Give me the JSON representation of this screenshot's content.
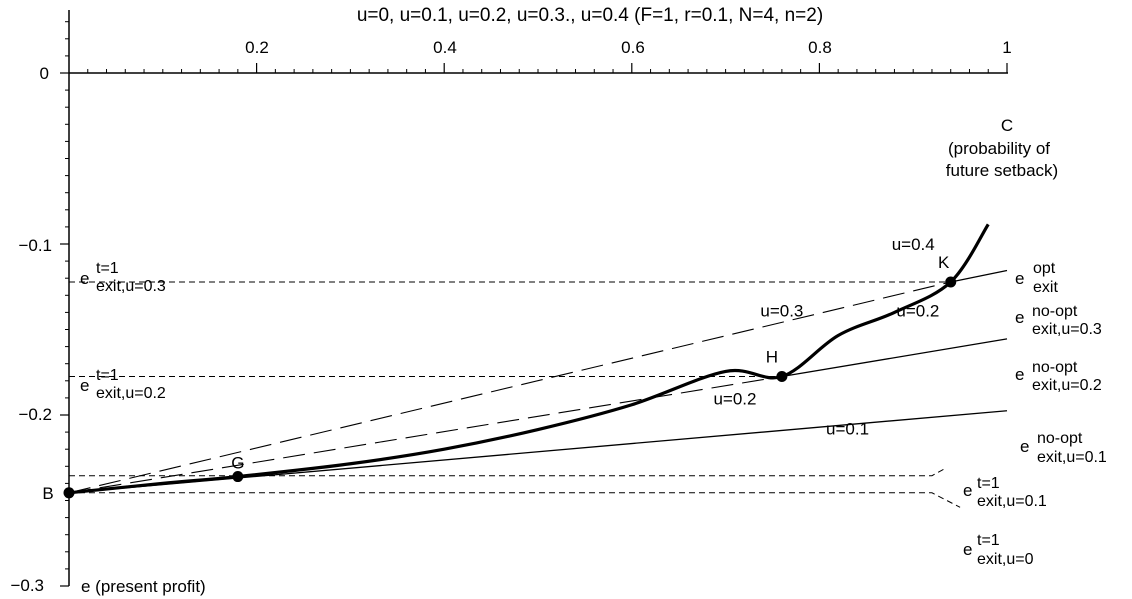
{
  "chart_data": {
    "type": "line",
    "title": "u=0, u=0.1, u=0.2, u=0.3., u=0.4  (F=1, r=0.1, N=4, n=2)",
    "xlim": [
      0,
      1
    ],
    "ylim": [
      -0.3,
      0.035
    ],
    "x_axis_position": "top, at e = 0",
    "x_ticks": [
      "0.2",
      "0.4",
      "0.6",
      "0.8",
      "1"
    ],
    "y_ticks": [
      "0",
      "−0.1",
      "−0.2",
      "−0.3"
    ],
    "x_label": [
      "C",
      "(probability of",
      "future setback)"
    ],
    "y_label": "e  (present profit)",
    "grid": false,
    "legend": "none",
    "series": [
      {
        "style": "thick-solid",
        "label_main": "e",
        "label_sup": "opt",
        "label_sub": "exit",
        "x": [
          0,
          0.1,
          0.18,
          0.3,
          0.4,
          0.5,
          0.6,
          0.7,
          0.76,
          0.82,
          0.88,
          0.94,
          0.98
        ],
        "y": [
          -0.2455,
          -0.24,
          -0.236,
          -0.2285,
          -0.22,
          -0.2085,
          -0.194,
          -0.1745,
          -0.1775,
          -0.1535,
          -0.14,
          -0.1222,
          -0.0885
        ]
      },
      {
        "style": "thin-solid",
        "label_main": "e",
        "label_sup": "no-opt",
        "label_sub": "exit,u=0.3",
        "x": [
          0.94,
          1
        ],
        "y": [
          -0.1222,
          -0.1155
        ]
      },
      {
        "style": "thin-solid",
        "label_main": "e",
        "label_sup": "no-opt",
        "label_sub": "exit,u=0.2",
        "x": [
          0.76,
          1
        ],
        "y": [
          -0.1775,
          -0.1555
        ]
      },
      {
        "style": "thin-solid",
        "label_main": "e",
        "label_sup": "no-opt",
        "label_sub": "exit,u=0.1",
        "x": [
          0,
          1
        ],
        "y": [
          -0.2455,
          -0.1975
        ]
      },
      {
        "style": "long-dash",
        "x": [
          0,
          0.94
        ],
        "y": [
          -0.2455,
          -0.1222
        ]
      },
      {
        "style": "long-dash",
        "x": [
          0,
          0.76
        ],
        "y": [
          -0.2455,
          -0.1775
        ]
      },
      {
        "style": "short-dash",
        "label_main": "e",
        "label_sup": "t=1",
        "label_sub": "exit,u=0.3",
        "x": [
          0,
          0.94
        ],
        "y": [
          -0.1222,
          -0.1222
        ]
      },
      {
        "style": "short-dash",
        "label_main": "e",
        "label_sup": "t=1",
        "label_sub": "exit,u=0.2",
        "x": [
          0,
          0.76
        ],
        "y": [
          -0.1775,
          -0.1775
        ]
      },
      {
        "style": "short-dash",
        "label_main": "e",
        "label_sup": "t=1",
        "label_sub": "exit,u=0.1",
        "x": [
          0,
          0.92,
          0.935
        ],
        "y": [
          -0.2355,
          -0.2355,
          -0.231
        ]
      },
      {
        "style": "short-dash",
        "label_main": "e",
        "label_sup": "t=1",
        "label_sub": "exit,u=0",
        "x": [
          0,
          0.92,
          0.95
        ],
        "y": [
          -0.2455,
          -0.2455,
          -0.254
        ]
      }
    ],
    "points": [
      {
        "label": "B",
        "x": 0,
        "y": -0.2455
      },
      {
        "label": "G",
        "x": 0.18,
        "y": -0.236
      },
      {
        "label": "H",
        "x": 0.76,
        "y": -0.1775
      },
      {
        "label": "K",
        "x": 0.94,
        "y": -0.1222
      }
    ],
    "annotations": [
      {
        "text": "u=0.4",
        "x": 0.9,
        "y": -0.1035
      },
      {
        "text": "u=0.3",
        "x": 0.76,
        "y": -0.1425
      },
      {
        "text": "u=0.2",
        "x": 0.905,
        "y": -0.1425
      },
      {
        "text": "u=0.2",
        "x": 0.71,
        "y": -0.194
      },
      {
        "text": "u=0.1",
        "x": 0.83,
        "y": -0.2115
      }
    ]
  }
}
